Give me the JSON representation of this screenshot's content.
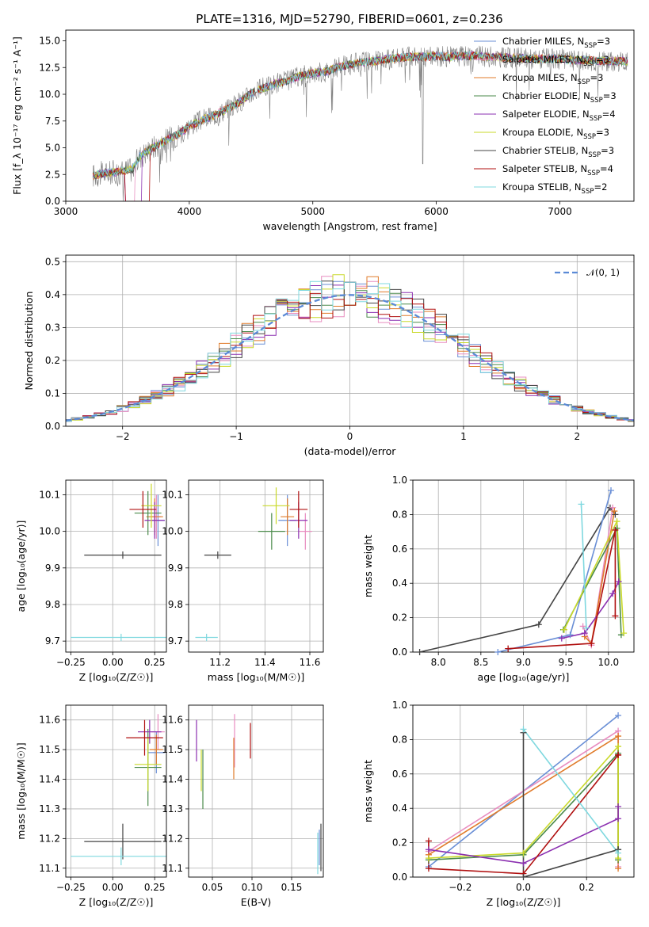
{
  "figure": {
    "title": "PLATE=1316, MJD=52790, FIBERID=0601, z=0.236"
  },
  "colors": {
    "Chabrier MILES": "#6a8fd6",
    "Salpeter MILES": "#e88dc0",
    "Kroupa MILES": "#e07b2a",
    "Chabrier ELODIE": "#4a8a4a",
    "Salpeter ELODIE": "#8b2fb0",
    "Kroupa ELODIE": "#c9d92a",
    "Chabrier STELIB": "#444444",
    "Salpeter STELIB": "#b01010",
    "Kroupa STELIB": "#7fd8df",
    "data": "#808080",
    "normal": "#5b8ad6"
  },
  "chart_data": [
    {
      "type": "line",
      "id": "spectrum",
      "title": "PLATE=1316, MJD=52790, FIBERID=0601, z=0.236",
      "xlabel": "wavelength [Angstrom, rest frame]",
      "ylabel": "Flux [f_λ 10⁻¹⁷ erg cm⁻² s⁻¹ A⁻¹]",
      "xlim": [
        3000,
        7600
      ],
      "ylim": [
        0,
        16
      ],
      "xticks": [
        "3000",
        "4000",
        "5000",
        "6000",
        "7000"
      ],
      "yticks": [
        "0.0",
        "2.5",
        "5.0",
        "7.5",
        "10.0",
        "12.5",
        "15.0"
      ],
      "grid": false,
      "legend_position": "top-right",
      "legend": [
        {
          "name": "Chabrier MILES, N",
          "sub": "SSP",
          "tail": "=3"
        },
        {
          "name": "Salpeter MILES, N",
          "sub": "SSP",
          "tail": "=3"
        },
        {
          "name": "Kroupa MILES, N",
          "sub": "SSP",
          "tail": "=3"
        },
        {
          "name": "Chabrier ELODIE, N",
          "sub": "SSP",
          "tail": "=3"
        },
        {
          "name": "Salpeter ELODIE, N",
          "sub": "SSP",
          "tail": "=4"
        },
        {
          "name": "Kroupa ELODIE, N",
          "sub": "SSP",
          "tail": "=3"
        },
        {
          "name": "Chabrier STELIB, N",
          "sub": "SSP",
          "tail": "=3"
        },
        {
          "name": "Salpeter STELIB, N",
          "sub": "SSP",
          "tail": "=4"
        },
        {
          "name": "Kroupa STELIB, N",
          "sub": "SSP",
          "tail": "=2"
        }
      ],
      "continuum": {
        "x": [
          3220,
          3300,
          3450,
          3540,
          3600,
          3700,
          3800,
          3900,
          3950,
          4000,
          4100,
          4200,
          4300,
          4400,
          4500,
          4600,
          4700,
          4800,
          4900,
          5000,
          5100,
          5200,
          5300,
          5400,
          5500,
          5600,
          5700,
          5800,
          5900,
          6000,
          6100,
          6200,
          6300,
          6400,
          6500,
          6600,
          6700,
          6800,
          6900,
          7000,
          7100,
          7200,
          7300,
          7400
        ],
        "y": [
          2.4,
          2.6,
          2.8,
          3.0,
          4.2,
          5.0,
          5.6,
          6.2,
          6.6,
          7.0,
          7.6,
          8.0,
          8.6,
          9.2,
          10.1,
          10.6,
          11.0,
          11.3,
          11.7,
          12.0,
          12.1,
          12.5,
          12.8,
          13.0,
          13.1,
          13.3,
          13.4,
          13.5,
          13.5,
          13.6,
          13.5,
          13.6,
          13.6,
          13.5,
          13.5,
          13.4,
          13.4,
          13.3,
          13.3,
          13.3,
          13.2,
          13.2,
          13.1,
          13.1
        ]
      }
    },
    {
      "type": "histogram",
      "id": "residuals",
      "xlabel": "(data-model)/error",
      "ylabel": "Normed distribution",
      "xlim": [
        -2.5,
        2.5
      ],
      "ylim": [
        0,
        0.52
      ],
      "xticks": [
        "−2",
        "−1",
        "0",
        "1",
        "2"
      ],
      "yticks": [
        "0.0",
        "0.1",
        "0.2",
        "0.3",
        "0.4",
        "0.5"
      ],
      "grid": true,
      "legend_position": "top-right",
      "legend": [
        {
          "name": "𝒩(0, 1)"
        }
      ],
      "bin_width": 0.1
    },
    {
      "type": "scatter",
      "id": "age_vs_Z",
      "xlabel": "Z [log₁₀(Z/Z☉)]",
      "ylabel": "age [log₁₀(age/yr)]",
      "xlim": [
        -0.28,
        0.32
      ],
      "ylim": [
        9.67,
        10.14
      ],
      "xticks": [
        "−0.25",
        "0.00",
        "0.25"
      ],
      "yticks": [
        "9.7",
        "9.8",
        "9.9",
        "10.0",
        "10.1"
      ],
      "grid": true,
      "points": [
        {
          "model": "Chabrier MILES",
          "x": 0.27,
          "y": 10.03,
          "ex": 0.04,
          "ey": 0.07
        },
        {
          "model": "Salpeter MILES",
          "x": 0.26,
          "y": 10.04,
          "ex": 0.03,
          "ey": 0.06
        },
        {
          "model": "Kroupa MILES",
          "x": 0.25,
          "y": 10.04,
          "ex": 0.05,
          "ey": 0.05
        },
        {
          "model": "Chabrier ELODIE",
          "x": 0.21,
          "y": 10.05,
          "ex": 0.08,
          "ey": 0.06
        },
        {
          "model": "Salpeter ELODIE",
          "x": 0.25,
          "y": 10.03,
          "ex": 0.06,
          "ey": 0.05
        },
        {
          "model": "Kroupa ELODIE",
          "x": 0.23,
          "y": 10.07,
          "ex": 0.06,
          "ey": 0.06
        },
        {
          "model": "Chabrier STELIB",
          "x": 0.06,
          "y": 9.935,
          "ex": 0.23,
          "ey": 0.01
        },
        {
          "model": "Salpeter STELIB",
          "x": 0.18,
          "y": 10.06,
          "ex": 0.08,
          "ey": 0.05
        },
        {
          "model": "Kroupa STELIB",
          "x": 0.05,
          "y": 9.71,
          "ex": 0.3,
          "ey": 0.01
        }
      ]
    },
    {
      "type": "scatter",
      "id": "age_vs_mass",
      "xlabel": "mass [log₁₀(M/M☉)]",
      "ylabel": "",
      "xlim": [
        11.06,
        11.66
      ],
      "ylim": [
        9.67,
        10.14
      ],
      "xticks": [
        "11.2",
        "11.4",
        "11.6"
      ],
      "yticks": [
        "9.7",
        "9.8",
        "9.9",
        "10.0",
        "10.1"
      ],
      "grid": true,
      "points": [
        {
          "model": "Chabrier MILES",
          "x": 11.5,
          "y": 10.03,
          "ex": 0.04,
          "ey": 0.07
        },
        {
          "model": "Salpeter MILES",
          "x": 11.58,
          "y": 10.0,
          "ex": 0.03,
          "ey": 0.05
        },
        {
          "model": "Kroupa MILES",
          "x": 11.5,
          "y": 10.04,
          "ex": 0.03,
          "ey": 0.05
        },
        {
          "model": "Chabrier ELODIE",
          "x": 11.43,
          "y": 10.0,
          "ex": 0.06,
          "ey": 0.05
        },
        {
          "model": "Salpeter ELODIE",
          "x": 11.55,
          "y": 10.03,
          "ex": 0.04,
          "ey": 0.05
        },
        {
          "model": "Kroupa ELODIE",
          "x": 11.45,
          "y": 10.07,
          "ex": 0.06,
          "ey": 0.05
        },
        {
          "model": "Chabrier STELIB",
          "x": 11.19,
          "y": 9.935,
          "ex": 0.06,
          "ey": 0.01
        },
        {
          "model": "Salpeter STELIB",
          "x": 11.55,
          "y": 10.06,
          "ex": 0.04,
          "ey": 0.05
        },
        {
          "model": "Kroupa STELIB",
          "x": 11.14,
          "y": 9.71,
          "ex": 0.05,
          "ey": 0.01
        }
      ]
    },
    {
      "type": "line",
      "id": "weight_vs_age",
      "xlabel": "age [log₁₀(age/yr)]",
      "ylabel": "mass weight",
      "xlim": [
        7.7,
        10.3
      ],
      "ylim": [
        0,
        1.0
      ],
      "xticks": [
        "8.0",
        "8.5",
        "9.0",
        "9.5",
        "10.0"
      ],
      "yticks": [
        "0.0",
        "0.2",
        "0.4",
        "0.6",
        "0.8",
        "1.0"
      ],
      "grid": true,
      "series": [
        {
          "model": "Chabrier STELIB",
          "x": [
            7.78,
            9.18,
            10.02,
            10.08
          ],
          "y": [
            0.0,
            0.16,
            0.84,
            0.8
          ]
        },
        {
          "model": "Chabrier MILES",
          "x": [
            8.7,
            9.55,
            10.03
          ],
          "y": [
            0.0,
            0.1,
            0.94
          ]
        },
        {
          "model": "Salpeter MILES",
          "x": [
            9.7,
            9.8,
            10.05
          ],
          "y": [
            0.15,
            0.04,
            0.84
          ]
        },
        {
          "model": "Kroupa MILES",
          "x": [
            9.72,
            9.8,
            10.07
          ],
          "y": [
            0.09,
            0.05,
            0.82
          ]
        },
        {
          "model": "Chabrier ELODIE",
          "x": [
            9.47,
            10.1,
            10.15
          ],
          "y": [
            0.13,
            0.72,
            0.1
          ]
        },
        {
          "model": "Kroupa ELODIE",
          "x": [
            9.48,
            10.1,
            10.18
          ],
          "y": [
            0.13,
            0.76,
            0.11
          ]
        },
        {
          "model": "Salpeter ELODIE",
          "x": [
            9.45,
            9.72,
            10.05,
            10.12
          ],
          "y": [
            0.08,
            0.11,
            0.34,
            0.41
          ]
        },
        {
          "model": "Salpeter STELIB",
          "x": [
            8.82,
            9.8,
            10.08,
            10.08
          ],
          "y": [
            0.02,
            0.05,
            0.71,
            0.21
          ]
        },
        {
          "model": "Kroupa STELIB",
          "x": [
            9.68,
            9.74
          ],
          "y": [
            0.86,
            0.14
          ]
        }
      ]
    },
    {
      "type": "scatter",
      "id": "mass_vs_Z",
      "xlabel": "Z [log₁₀(Z/Z☉)]",
      "ylabel": "mass [log₁₀(M/M☉)]",
      "xlim": [
        -0.28,
        0.32
      ],
      "ylim": [
        11.07,
        11.65
      ],
      "xticks": [
        "−0.25",
        "0.00",
        "0.25"
      ],
      "yticks": [
        "11.1",
        "11.2",
        "11.3",
        "11.4",
        "11.5",
        "11.6"
      ],
      "grid": true,
      "points": [
        {
          "model": "Chabrier MILES",
          "x": 0.26,
          "y": 11.49,
          "ex": 0.05,
          "ey": 0.07
        },
        {
          "model": "Salpeter MILES",
          "x": 0.27,
          "y": 11.56,
          "ex": 0.04,
          "ey": 0.06
        },
        {
          "model": "Kroupa MILES",
          "x": 0.26,
          "y": 11.5,
          "ex": 0.04,
          "ey": 0.05
        },
        {
          "model": "Chabrier ELODIE",
          "x": 0.21,
          "y": 11.44,
          "ex": 0.08,
          "ey": 0.13
        },
        {
          "model": "Salpeter ELODIE",
          "x": 0.22,
          "y": 11.56,
          "ex": 0.07,
          "ey": 0.04
        },
        {
          "model": "Kroupa ELODIE",
          "x": 0.21,
          "y": 11.45,
          "ex": 0.08,
          "ey": 0.09
        },
        {
          "model": "Chabrier STELIB",
          "x": 0.06,
          "y": 11.19,
          "ex": 0.23,
          "ey": 0.06
        },
        {
          "model": "Salpeter STELIB",
          "x": 0.19,
          "y": 11.54,
          "ex": 0.11,
          "ey": 0.06
        },
        {
          "model": "Kroupa STELIB",
          "x": 0.05,
          "y": 11.14,
          "ex": 0.3,
          "ey": 0.03
        }
      ]
    },
    {
      "type": "scatter",
      "id": "mass_vs_EBV",
      "xlabel": "E(B-V)",
      "ylabel": "",
      "xlim": [
        0.02,
        0.19
      ],
      "ylim": [
        11.07,
        11.65
      ],
      "xticks": [
        "0.05",
        "0.10",
        "0.15"
      ],
      "yticks": [
        "11.1",
        "11.2",
        "11.3",
        "11.4",
        "11.5",
        "11.6"
      ],
      "grid": true,
      "points": [
        {
          "model": "Chabrier MILES",
          "x": 0.185,
          "y": 11.17,
          "ex": 0,
          "ey": 0.06
        },
        {
          "model": "Salpeter MILES",
          "x": 0.078,
          "y": 11.53,
          "ex": 0,
          "ey": 0.09
        },
        {
          "model": "Kroupa MILES",
          "x": 0.077,
          "y": 11.47,
          "ex": 0,
          "ey": 0.07
        },
        {
          "model": "Chabrier ELODIE",
          "x": 0.038,
          "y": 11.4,
          "ex": 0,
          "ey": 0.1
        },
        {
          "model": "Salpeter ELODIE",
          "x": 0.03,
          "y": 11.53,
          "ex": 0,
          "ey": 0.07
        },
        {
          "model": "Kroupa ELODIE",
          "x": 0.036,
          "y": 11.43,
          "ex": 0,
          "ey": 0.07
        },
        {
          "model": "Chabrier STELIB",
          "x": 0.187,
          "y": 11.17,
          "ex": 0,
          "ey": 0.08
        },
        {
          "model": "Salpeter STELIB",
          "x": 0.098,
          "y": 11.53,
          "ex": 0,
          "ey": 0.06
        },
        {
          "model": "Kroupa STELIB",
          "x": 0.183,
          "y": 11.15,
          "ex": 0,
          "ey": 0.07
        }
      ]
    },
    {
      "type": "line",
      "id": "weight_vs_Z",
      "xlabel": "Z [log₁₀(Z/Z☉)]",
      "ylabel": "mass weight",
      "xlim": [
        -0.35,
        0.35
      ],
      "ylim": [
        0,
        1.0
      ],
      "xticks": [
        "−0.2",
        "0.0",
        "0.2"
      ],
      "yticks": [
        "0.0",
        "0.2",
        "0.4",
        "0.6",
        "0.8",
        "1.0"
      ],
      "grid": true,
      "series": [
        {
          "model": "Chabrier MILES",
          "x": [
            -0.3,
            0.3
          ],
          "y": [
            0.06,
            0.94
          ]
        },
        {
          "model": "Salpeter MILES",
          "x": [
            -0.3,
            0.3,
            0.3
          ],
          "y": [
            0.15,
            0.85,
            0.06
          ]
        },
        {
          "model": "Kroupa MILES",
          "x": [
            -0.3,
            0.3,
            0.3
          ],
          "y": [
            0.13,
            0.82,
            0.05
          ]
        },
        {
          "model": "Chabrier ELODIE",
          "x": [
            -0.3,
            0.0,
            0.3,
            0.3
          ],
          "y": [
            0.1,
            0.13,
            0.72,
            0.1
          ]
        },
        {
          "model": "Kroupa ELODIE",
          "x": [
            -0.3,
            0.0,
            0.3,
            0.3
          ],
          "y": [
            0.11,
            0.14,
            0.76,
            0.11
          ]
        },
        {
          "model": "Salpeter ELODIE",
          "x": [
            -0.3,
            0.0,
            0.3,
            0.3
          ],
          "y": [
            0.16,
            0.08,
            0.34,
            0.41
          ]
        },
        {
          "model": "Salpeter STELIB",
          "x": [
            -0.3,
            -0.3,
            0.0,
            0.3,
            0.3
          ],
          "y": [
            0.21,
            0.05,
            0.02,
            0.71,
            0.71
          ]
        },
        {
          "model": "Chabrier STELIB",
          "x": [
            0.0,
            0.0,
            0.3,
            0.3
          ],
          "y": [
            0.84,
            0.0,
            0.16,
            0.16
          ]
        },
        {
          "model": "Kroupa STELIB",
          "x": [
            0.0,
            0.3
          ],
          "y": [
            0.86,
            0.14
          ]
        }
      ]
    }
  ]
}
